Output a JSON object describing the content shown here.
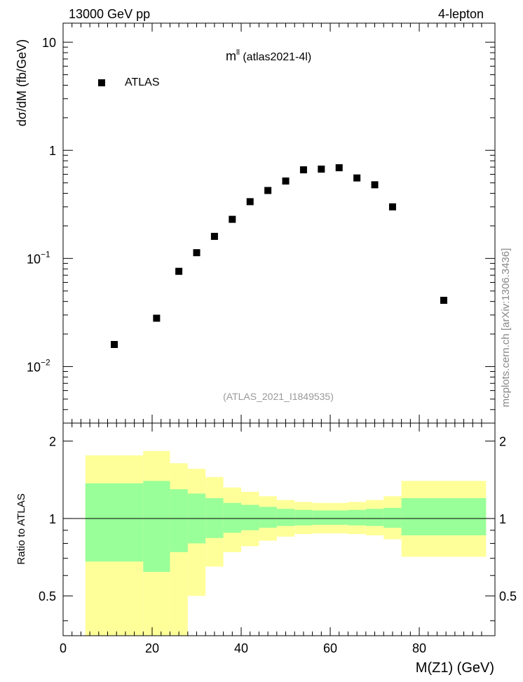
{
  "header": {
    "left": "13000 GeV pp",
    "right": "4-lepton"
  },
  "side_label": "mcplots.cern.ch [arXiv:1306.3436]",
  "chart_data": [
    {
      "type": "scatter",
      "title_main": "m",
      "title_super": "ll",
      "title_suffix": " (atlas2021-4l)",
      "ylabel": "dσ/dM (fb/GeV)",
      "yscale": "log",
      "ylim": [
        0.003,
        15
      ],
      "xlim": [
        0,
        97
      ],
      "y_ticks": [
        {
          "value": 0.01,
          "base": "10",
          "exp": "−2"
        },
        {
          "value": 0.1,
          "base": "10",
          "exp": "−1"
        },
        {
          "value": 1,
          "base": "1",
          "exp": ""
        },
        {
          "value": 10,
          "base": "10",
          "exp": ""
        }
      ],
      "legend": "ATLAS",
      "watermark": "(ATLAS_2021_I1849535)",
      "series": [
        {
          "name": "ATLAS",
          "x": [
            11.5,
            21,
            26,
            30,
            34,
            38,
            42,
            46,
            50,
            54,
            58,
            62,
            66,
            70,
            74,
            85.5
          ],
          "y": [
            0.016,
            0.028,
            0.076,
            0.113,
            0.16,
            0.23,
            0.335,
            0.425,
            0.52,
            0.66,
            0.67,
            0.69,
            0.555,
            0.48,
            0.3,
            0.041
          ]
        }
      ]
    },
    {
      "type": "area",
      "ylabel": "Ratio to ATLAS",
      "xlabel": "M(Z1) (GeV)",
      "xlim": [
        0,
        97
      ],
      "ylim": [
        0.35,
        2.35
      ],
      "x_ticks": [
        0,
        20,
        40,
        60,
        80
      ],
      "y_ticks": [
        0.5,
        1,
        2
      ],
      "reference": 1,
      "bins": [
        {
          "x0": 5,
          "x1": 18,
          "inner_lo": 0.68,
          "inner_hi": 1.37,
          "outer_lo": 0.35,
          "outer_hi": 1.76
        },
        {
          "x0": 18,
          "x1": 24,
          "inner_lo": 0.62,
          "inner_hi": 1.4,
          "outer_lo": 0.35,
          "outer_hi": 1.83
        },
        {
          "x0": 24,
          "x1": 28,
          "inner_lo": 0.74,
          "inner_hi": 1.3,
          "outer_lo": 0.35,
          "outer_hi": 1.64
        },
        {
          "x0": 28,
          "x1": 32,
          "inner_lo": 0.8,
          "inner_hi": 1.25,
          "outer_lo": 0.5,
          "outer_hi": 1.56
        },
        {
          "x0": 32,
          "x1": 36,
          "inner_lo": 0.84,
          "inner_hi": 1.2,
          "outer_lo": 0.65,
          "outer_hi": 1.45
        },
        {
          "x0": 36,
          "x1": 40,
          "inner_lo": 0.88,
          "inner_hi": 1.15,
          "outer_lo": 0.74,
          "outer_hi": 1.32
        },
        {
          "x0": 40,
          "x1": 44,
          "inner_lo": 0.9,
          "inner_hi": 1.13,
          "outer_lo": 0.78,
          "outer_hi": 1.27
        },
        {
          "x0": 44,
          "x1": 48,
          "inner_lo": 0.92,
          "inner_hi": 1.11,
          "outer_lo": 0.82,
          "outer_hi": 1.22
        },
        {
          "x0": 48,
          "x1": 52,
          "inner_lo": 0.935,
          "inner_hi": 1.09,
          "outer_lo": 0.85,
          "outer_hi": 1.18
        },
        {
          "x0": 52,
          "x1": 56,
          "inner_lo": 0.94,
          "inner_hi": 1.08,
          "outer_lo": 0.87,
          "outer_hi": 1.16
        },
        {
          "x0": 56,
          "x1": 60,
          "inner_lo": 0.945,
          "inner_hi": 1.075,
          "outer_lo": 0.875,
          "outer_hi": 1.15
        },
        {
          "x0": 60,
          "x1": 64,
          "inner_lo": 0.945,
          "inner_hi": 1.075,
          "outer_lo": 0.875,
          "outer_hi": 1.15
        },
        {
          "x0": 64,
          "x1": 68,
          "inner_lo": 0.94,
          "inner_hi": 1.08,
          "outer_lo": 0.87,
          "outer_hi": 1.16
        },
        {
          "x0": 68,
          "x1": 72,
          "inner_lo": 0.935,
          "inner_hi": 1.09,
          "outer_lo": 0.86,
          "outer_hi": 1.18
        },
        {
          "x0": 72,
          "x1": 76,
          "inner_lo": 0.92,
          "inner_hi": 1.1,
          "outer_lo": 0.83,
          "outer_hi": 1.22
        },
        {
          "x0": 76,
          "x1": 95,
          "inner_lo": 0.86,
          "inner_hi": 1.2,
          "outer_lo": 0.71,
          "outer_hi": 1.4
        }
      ],
      "colors": {
        "inner": "#99ff99",
        "outer": "#ffff99"
      }
    }
  ]
}
